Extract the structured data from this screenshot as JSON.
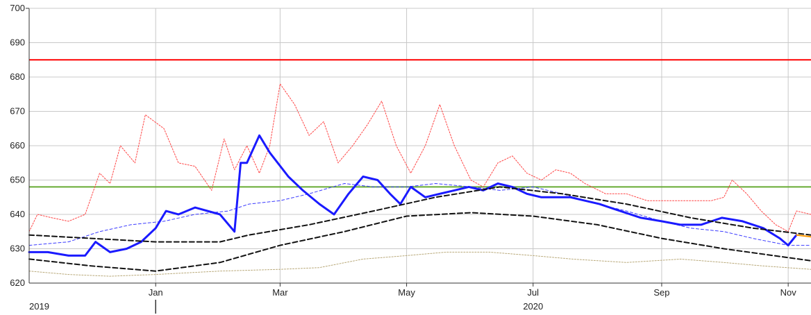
{
  "chart_data": {
    "type": "line",
    "ylim": [
      620,
      700
    ],
    "y_ticks": [
      "700",
      "690",
      "680",
      "670",
      "660",
      "650",
      "640",
      "630",
      "620"
    ],
    "x_ticks": [
      "Jan",
      "Mar",
      "May",
      "Jul",
      "Sep",
      "Nov"
    ],
    "x_tick_dates": [
      "2020-01-01",
      "2020-03-01",
      "2020-05-01",
      "2020-07-01",
      "2020-09-01",
      "2020-11-01"
    ],
    "xlim": [
      "2019-11-01",
      "2020-11-12"
    ],
    "year_labels": [
      {
        "label": "2019",
        "date": "2019-11-01"
      },
      {
        "label": "2020",
        "date": "2020-07-01"
      }
    ],
    "grid": true,
    "legend": "none",
    "hlines": [
      {
        "value": 685,
        "color": "#ff0000"
      },
      {
        "value": 648,
        "color": "#66aa33"
      }
    ],
    "series": [
      {
        "style": "dotted",
        "color": "#ff4444",
        "x": [
          "2019-11-01",
          "2019-11-05",
          "2019-11-12",
          "2019-11-20",
          "2019-11-28",
          "2019-12-05",
          "2019-12-10",
          "2019-12-15",
          "2019-12-22",
          "2019-12-27",
          "2020-01-05",
          "2020-01-12",
          "2020-01-20",
          "2020-01-28",
          "2020-02-03",
          "2020-02-08",
          "2020-02-14",
          "2020-02-20",
          "2020-02-25",
          "2020-03-01",
          "2020-03-08",
          "2020-03-15",
          "2020-03-22",
          "2020-03-29",
          "2020-04-05",
          "2020-04-12",
          "2020-04-19",
          "2020-04-26",
          "2020-05-03",
          "2020-05-10",
          "2020-05-17",
          "2020-05-24",
          "2020-06-01",
          "2020-06-07",
          "2020-06-14",
          "2020-06-21",
          "2020-06-28",
          "2020-07-05",
          "2020-07-12",
          "2020-07-19",
          "2020-07-26",
          "2020-08-05",
          "2020-08-15",
          "2020-08-25",
          "2020-09-05",
          "2020-09-15",
          "2020-09-25",
          "2020-10-01",
          "2020-10-05",
          "2020-10-12",
          "2020-10-19",
          "2020-10-26",
          "2020-11-01",
          "2020-11-05",
          "2020-11-12"
        ],
        "y": [
          635,
          640,
          639,
          638,
          640,
          652,
          649,
          660,
          655,
          669,
          665,
          655,
          654,
          647,
          662,
          653,
          660,
          652,
          660,
          678,
          672,
          663,
          667,
          655,
          660,
          666,
          673,
          660,
          652,
          660,
          672,
          660,
          650,
          648,
          655,
          657,
          652,
          650,
          653,
          652,
          649,
          646,
          646,
          644,
          644,
          644,
          644,
          645,
          650,
          646,
          641,
          637,
          635,
          641,
          640
        ]
      },
      {
        "style": "dashed",
        "color": "#3a3aff",
        "x": [
          "2019-11-01",
          "2019-11-20",
          "2019-12-05",
          "2019-12-20",
          "2020-01-05",
          "2020-01-20",
          "2020-02-05",
          "2020-02-15",
          "2020-03-01",
          "2020-03-15",
          "2020-04-01",
          "2020-04-15",
          "2020-05-01",
          "2020-05-15",
          "2020-06-01",
          "2020-06-15",
          "2020-07-01",
          "2020-07-15",
          "2020-08-01",
          "2020-08-15",
          "2020-09-01",
          "2020-09-15",
          "2020-10-01",
          "2020-10-15",
          "2020-11-01",
          "2020-11-12"
        ],
        "y": [
          631,
          632,
          635,
          637,
          638,
          640,
          641,
          643,
          644,
          646,
          649,
          648,
          648,
          649,
          648,
          647,
          648,
          646,
          643,
          641,
          638,
          636,
          635,
          633,
          631,
          631
        ]
      },
      {
        "style": "solid",
        "color": "#1a1aff",
        "x": [
          "2019-11-01",
          "2019-11-10",
          "2019-11-20",
          "2019-11-28",
          "2019-12-03",
          "2019-12-10",
          "2019-12-18",
          "2019-12-25",
          "2020-01-01",
          "2020-01-06",
          "2020-01-12",
          "2020-01-20",
          "2020-02-01",
          "2020-02-08",
          "2020-02-11",
          "2020-02-14",
          "2020-02-20",
          "2020-02-25",
          "2020-03-05",
          "2020-03-12",
          "2020-03-20",
          "2020-03-27",
          "2020-04-03",
          "2020-04-10",
          "2020-04-17",
          "2020-04-23",
          "2020-04-28",
          "2020-05-03",
          "2020-05-10",
          "2020-05-17",
          "2020-05-24",
          "2020-05-31",
          "2020-06-07",
          "2020-06-14",
          "2020-06-21",
          "2020-06-28",
          "2020-07-05",
          "2020-07-12",
          "2020-07-19",
          "2020-07-26",
          "2020-08-02",
          "2020-08-12",
          "2020-08-22",
          "2020-09-01",
          "2020-09-10",
          "2020-09-20",
          "2020-09-30",
          "2020-10-10",
          "2020-10-20",
          "2020-10-28",
          "2020-11-01",
          "2020-11-05"
        ],
        "y": [
          629,
          629,
          628,
          628,
          632,
          629,
          630,
          632,
          636,
          641,
          640,
          642,
          640,
          635,
          655,
          655,
          663,
          658,
          651,
          647,
          643,
          640,
          646,
          651,
          650,
          646,
          643,
          648,
          645,
          646,
          647,
          648,
          647,
          649,
          648,
          646,
          645,
          645,
          645,
          644,
          643,
          641,
          639,
          638,
          637,
          637,
          639,
          638,
          636,
          633,
          631,
          634
        ]
      },
      {
        "style": "solid",
        "color": "#ff9900",
        "x": [
          "2020-11-05",
          "2020-11-12"
        ],
        "y": [
          634,
          633.5
        ]
      },
      {
        "style": "dashed",
        "color": "#111111",
        "x": [
          "2019-11-01",
          "2019-12-01",
          "2020-01-01",
          "2020-02-01",
          "2020-02-15",
          "2020-03-15",
          "2020-04-15",
          "2020-05-15",
          "2020-06-15",
          "2020-07-15",
          "2020-08-15",
          "2020-09-15",
          "2020-10-15",
          "2020-11-12"
        ],
        "y": [
          634,
          633,
          632,
          632,
          634,
          637,
          641,
          645,
          648,
          646,
          643,
          639,
          636,
          634
        ]
      },
      {
        "style": "dashed",
        "color": "#111111",
        "x": [
          "2019-11-01",
          "2019-12-01",
          "2020-01-01",
          "2020-02-01",
          "2020-03-01",
          "2020-04-01",
          "2020-05-01",
          "2020-06-01",
          "2020-07-01",
          "2020-08-01",
          "2020-09-01",
          "2020-10-01",
          "2020-11-12"
        ],
        "y": [
          627,
          625,
          623.5,
          626,
          631,
          635,
          639.5,
          640.5,
          639.5,
          637,
          633,
          630,
          626.5
        ]
      },
      {
        "style": "dotted",
        "color": "#b8a878",
        "x": [
          "2019-11-01",
          "2019-11-20",
          "2019-12-10",
          "2020-01-01",
          "2020-02-01",
          "2020-03-01",
          "2020-03-20",
          "2020-04-10",
          "2020-05-01",
          "2020-05-20",
          "2020-06-10",
          "2020-07-01",
          "2020-07-20",
          "2020-08-15",
          "2020-09-10",
          "2020-10-01",
          "2020-10-20",
          "2020-11-12"
        ],
        "y": [
          623.5,
          622.5,
          622,
          622.5,
          623.5,
          624,
          624.5,
          627,
          628,
          629,
          629,
          628,
          627,
          626,
          627,
          626,
          625,
          624
        ]
      }
    ]
  }
}
